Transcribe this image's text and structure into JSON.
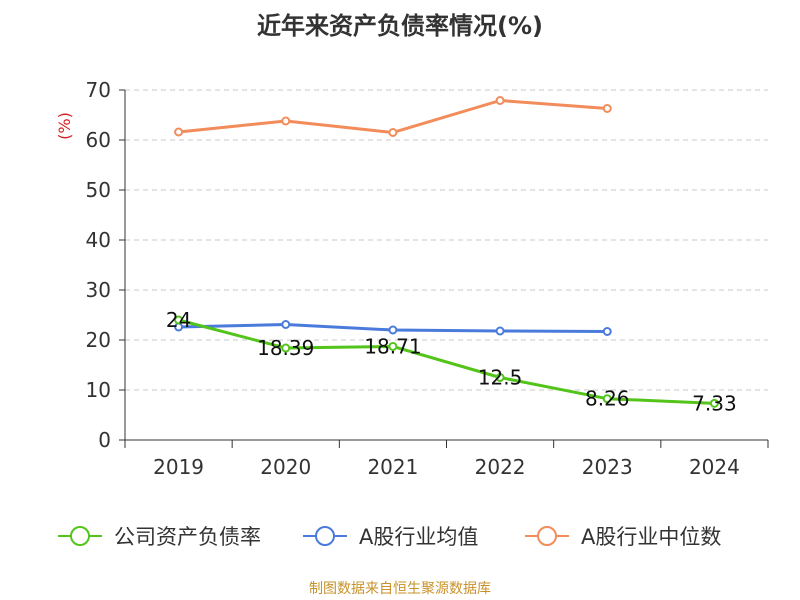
{
  "chart_data": {
    "type": "line",
    "title": "近年来资产负债率情况(%)",
    "ylabel": "(%)",
    "xlabel": "",
    "categories": [
      "2019",
      "2020",
      "2021",
      "2022",
      "2023",
      "2024"
    ],
    "ylim": [
      0,
      70
    ],
    "yticks": [
      0,
      10,
      20,
      30,
      40,
      50,
      60,
      70
    ],
    "grid": true,
    "legend_position": "bottom",
    "series": [
      {
        "name": "公司资产负债率",
        "color": "#52c41a",
        "values": [
          24,
          18.39,
          18.71,
          12.5,
          8.26,
          7.33
        ],
        "data_labels": [
          "24",
          "18.39",
          "18.71",
          "12.5",
          "8.26",
          "7.33"
        ]
      },
      {
        "name": "A股行业均值",
        "color": "#4a7bdc",
        "values": [
          22.6,
          23.1,
          22.0,
          21.8,
          21.7,
          null
        ]
      },
      {
        "name": "A股行业中位数",
        "color": "#f28c5a",
        "values": [
          61.6,
          63.8,
          61.5,
          67.9,
          66.3,
          null
        ]
      }
    ]
  },
  "source": "制图数据来自恒生聚源数据库"
}
